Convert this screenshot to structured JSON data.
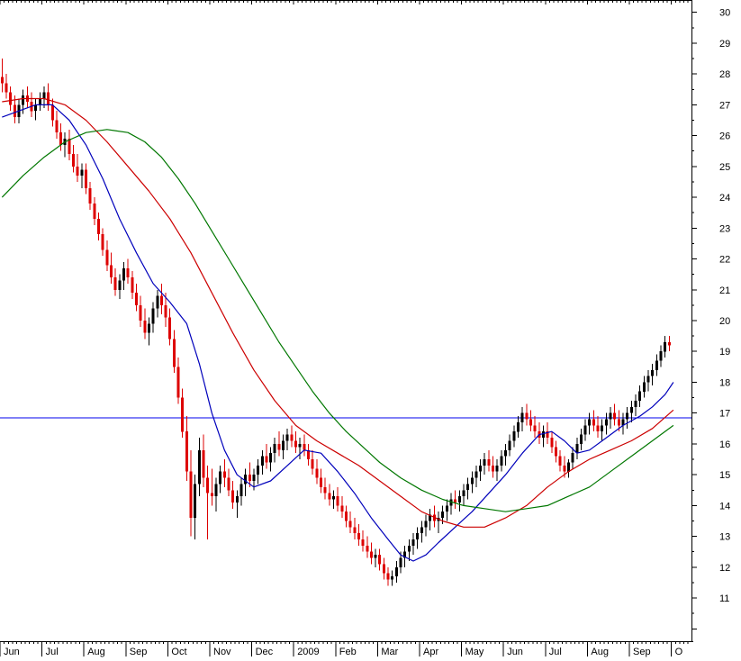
{
  "chart_data": {
    "type": "candlestick",
    "title": "",
    "xlabel": "",
    "ylabel": "",
    "grid": "off",
    "legend": "none",
    "x_tick_labels": [
      "Jun",
      "Jul",
      "Aug",
      "Sep",
      "Oct",
      "Nov",
      "Dec",
      "2009",
      "Feb",
      "Mar",
      "Apr",
      "May",
      "Jun",
      "Jul",
      "Aug",
      "Sep",
      "O"
    ],
    "candles_per_month": 10,
    "y_tick_labels": [
      30,
      29,
      28,
      27,
      26,
      25,
      24,
      23,
      22,
      21,
      20,
      19,
      18,
      17,
      16,
      15,
      14,
      13,
      12,
      11
    ],
    "ylim": [
      9.6,
      30.4
    ],
    "horizontal_line": {
      "value": 16.85,
      "color": "#0000ee"
    },
    "candle_colors": {
      "up": "#000000",
      "down": "#dd0000"
    },
    "candles": [
      [
        27.9,
        28.5,
        27.4,
        27.7
      ],
      [
        27.7,
        28.0,
        27.2,
        27.4
      ],
      [
        27.4,
        27.6,
        26.8,
        27.0
      ],
      [
        27.0,
        27.3,
        26.4,
        26.6
      ],
      [
        26.6,
        27.2,
        26.4,
        27.0
      ],
      [
        27.0,
        27.5,
        26.7,
        27.3
      ],
      [
        27.3,
        27.6,
        26.9,
        27.1
      ],
      [
        27.1,
        27.4,
        26.6,
        26.8
      ],
      [
        26.8,
        27.2,
        26.5,
        27.0
      ],
      [
        27.0,
        27.4,
        26.8,
        27.2
      ],
      [
        27.2,
        27.6,
        26.9,
        27.4
      ],
      [
        27.4,
        27.7,
        26.8,
        27.0
      ],
      [
        27.0,
        27.2,
        26.3,
        26.5
      ],
      [
        26.5,
        26.8,
        25.9,
        26.1
      ],
      [
        26.1,
        26.4,
        25.5,
        25.7
      ],
      [
        25.7,
        26.1,
        25.3,
        25.9
      ],
      [
        25.9,
        26.2,
        25.2,
        25.4
      ],
      [
        25.4,
        25.7,
        24.8,
        25.0
      ],
      [
        25.0,
        25.4,
        24.5,
        24.7
      ],
      [
        24.7,
        25.1,
        24.3,
        24.9
      ],
      [
        24.9,
        25.1,
        24.1,
        24.3
      ],
      [
        24.3,
        24.5,
        23.6,
        23.8
      ],
      [
        23.8,
        24.0,
        23.1,
        23.3
      ],
      [
        23.3,
        23.5,
        22.6,
        22.8
      ],
      [
        22.8,
        23.0,
        22.1,
        22.3
      ],
      [
        22.3,
        22.6,
        21.6,
        21.8
      ],
      [
        21.8,
        22.2,
        21.2,
        21.4
      ],
      [
        21.4,
        21.7,
        20.8,
        21.0
      ],
      [
        21.0,
        21.5,
        20.7,
        21.3
      ],
      [
        21.3,
        21.9,
        21.0,
        21.7
      ],
      [
        21.7,
        22.0,
        21.2,
        21.4
      ],
      [
        21.4,
        21.6,
        20.7,
        20.9
      ],
      [
        20.9,
        21.2,
        20.3,
        20.5
      ],
      [
        20.5,
        20.8,
        19.8,
        20.0
      ],
      [
        20.0,
        20.4,
        19.4,
        19.6
      ],
      [
        19.6,
        20.1,
        19.2,
        19.9
      ],
      [
        19.9,
        20.6,
        19.6,
        20.4
      ],
      [
        20.4,
        21.0,
        20.1,
        20.8
      ],
      [
        20.8,
        21.2,
        20.2,
        20.5
      ],
      [
        20.5,
        20.9,
        19.8,
        20.1
      ],
      [
        20.1,
        20.4,
        19.2,
        19.4
      ],
      [
        19.4,
        19.7,
        18.3,
        18.5
      ],
      [
        18.5,
        18.8,
        17.3,
        17.5
      ],
      [
        17.5,
        17.8,
        16.2,
        16.4
      ],
      [
        16.4,
        16.9,
        14.8,
        15.1
      ],
      [
        15.1,
        15.8,
        13.0,
        13.6
      ],
      [
        13.6,
        15.0,
        12.9,
        14.7
      ],
      [
        14.7,
        16.2,
        14.3,
        15.8
      ],
      [
        15.8,
        16.3,
        14.6,
        14.9
      ],
      [
        14.9,
        15.3,
        12.9,
        14.4
      ],
      [
        14.4,
        15.2,
        14.0,
        14.3
      ],
      [
        14.3,
        14.9,
        13.8,
        14.7
      ],
      [
        14.7,
        15.3,
        14.4,
        15.1
      ],
      [
        15.1,
        15.5,
        14.6,
        14.9
      ],
      [
        14.9,
        15.2,
        14.3,
        14.5
      ],
      [
        14.5,
        14.8,
        13.9,
        14.1
      ],
      [
        14.1,
        14.5,
        13.6,
        14.3
      ],
      [
        14.3,
        14.9,
        14.0,
        14.7
      ],
      [
        14.7,
        15.2,
        14.3,
        15.0
      ],
      [
        15.0,
        15.4,
        14.6,
        14.8
      ],
      [
        14.8,
        15.2,
        14.5,
        15.0
      ],
      [
        15.0,
        15.5,
        14.7,
        15.3
      ],
      [
        15.3,
        15.8,
        15.0,
        15.6
      ],
      [
        15.6,
        16.0,
        15.2,
        15.4
      ],
      [
        15.4,
        15.9,
        15.1,
        15.7
      ],
      [
        15.7,
        16.2,
        15.4,
        16.0
      ],
      [
        16.0,
        16.4,
        15.6,
        15.8
      ],
      [
        15.8,
        16.3,
        15.5,
        16.1
      ],
      [
        16.1,
        16.5,
        15.8,
        16.3
      ],
      [
        16.3,
        16.6,
        15.9,
        16.1
      ],
      [
        16.1,
        16.4,
        15.7,
        15.9
      ],
      [
        15.9,
        16.2,
        15.5,
        16.0
      ],
      [
        16.0,
        16.3,
        15.6,
        15.8
      ],
      [
        15.8,
        16.0,
        15.3,
        15.5
      ],
      [
        15.5,
        15.8,
        15.0,
        15.2
      ],
      [
        15.2,
        15.5,
        14.7,
        14.9
      ],
      [
        14.9,
        15.2,
        14.4,
        14.6
      ],
      [
        14.6,
        14.9,
        14.2,
        14.4
      ],
      [
        14.4,
        14.7,
        14.0,
        14.2
      ],
      [
        14.2,
        14.5,
        13.9,
        14.3
      ],
      [
        14.3,
        14.6,
        13.8,
        14.0
      ],
      [
        14.0,
        14.3,
        13.6,
        13.8
      ],
      [
        13.8,
        14.0,
        13.3,
        13.5
      ],
      [
        13.5,
        13.8,
        13.1,
        13.3
      ],
      [
        13.3,
        13.6,
        12.9,
        13.1
      ],
      [
        13.1,
        13.4,
        12.7,
        12.9
      ],
      [
        12.9,
        13.2,
        12.5,
        12.7
      ],
      [
        12.7,
        13.0,
        12.3,
        12.5
      ],
      [
        12.5,
        12.8,
        12.1,
        12.3
      ],
      [
        12.3,
        12.6,
        12.0,
        12.4
      ],
      [
        12.4,
        12.6,
        11.9,
        12.1
      ],
      [
        12.1,
        12.3,
        11.6,
        11.8
      ],
      [
        11.8,
        12.0,
        11.4,
        11.6
      ],
      [
        11.6,
        11.9,
        11.4,
        11.7
      ],
      [
        11.7,
        12.2,
        11.5,
        12.0
      ],
      [
        12.0,
        12.5,
        11.8,
        12.3
      ],
      [
        12.3,
        12.7,
        12.0,
        12.5
      ],
      [
        12.5,
        12.9,
        12.2,
        12.7
      ],
      [
        12.7,
        13.1,
        12.4,
        12.9
      ],
      [
        12.9,
        13.3,
        12.6,
        13.1
      ],
      [
        13.1,
        13.5,
        12.8,
        13.3
      ],
      [
        13.3,
        13.7,
        13.0,
        13.5
      ],
      [
        13.5,
        13.9,
        13.2,
        13.7
      ],
      [
        13.7,
        14.0,
        13.3,
        13.5
      ],
      [
        13.5,
        13.8,
        13.1,
        13.6
      ],
      [
        13.6,
        14.0,
        13.4,
        13.8
      ],
      [
        13.8,
        14.2,
        13.5,
        14.0
      ],
      [
        14.0,
        14.4,
        13.7,
        14.2
      ],
      [
        14.2,
        14.5,
        13.9,
        14.1
      ],
      [
        14.1,
        14.5,
        13.8,
        14.3
      ],
      [
        14.3,
        14.7,
        14.0,
        14.5
      ],
      [
        14.5,
        14.9,
        14.2,
        14.7
      ],
      [
        14.7,
        15.1,
        14.4,
        14.9
      ],
      [
        14.9,
        15.3,
        14.6,
        15.1
      ],
      [
        15.1,
        15.5,
        14.8,
        15.3
      ],
      [
        15.3,
        15.7,
        15.0,
        15.5
      ],
      [
        15.5,
        15.8,
        15.1,
        15.3
      ],
      [
        15.3,
        15.6,
        14.9,
        15.1
      ],
      [
        15.1,
        15.5,
        14.8,
        15.3
      ],
      [
        15.3,
        15.8,
        15.1,
        15.6
      ],
      [
        15.6,
        16.0,
        15.3,
        15.8
      ],
      [
        15.8,
        16.3,
        15.6,
        16.1
      ],
      [
        16.1,
        16.6,
        15.9,
        16.4
      ],
      [
        16.4,
        16.9,
        16.2,
        16.7
      ],
      [
        16.7,
        17.2,
        16.4,
        17.0
      ],
      [
        17.0,
        17.3,
        16.6,
        16.8
      ],
      [
        16.8,
        17.1,
        16.4,
        16.6
      ],
      [
        16.6,
        16.9,
        16.2,
        16.4
      ],
      [
        16.4,
        16.7,
        16.0,
        16.2
      ],
      [
        16.2,
        16.6,
        15.9,
        16.4
      ],
      [
        16.4,
        16.7,
        16.0,
        16.2
      ],
      [
        16.2,
        16.4,
        15.7,
        15.9
      ],
      [
        15.9,
        16.1,
        15.4,
        15.6
      ],
      [
        15.6,
        15.8,
        15.1,
        15.3
      ],
      [
        15.3,
        15.6,
        14.9,
        15.1
      ],
      [
        15.1,
        15.5,
        14.9,
        15.4
      ],
      [
        15.4,
        15.9,
        15.2,
        15.7
      ],
      [
        15.7,
        16.2,
        15.5,
        16.0
      ],
      [
        16.0,
        16.5,
        15.8,
        16.3
      ],
      [
        16.3,
        16.8,
        16.1,
        16.6
      ],
      [
        16.6,
        17.0,
        16.3,
        16.8
      ],
      [
        16.8,
        17.1,
        16.4,
        16.6
      ],
      [
        16.6,
        16.9,
        16.2,
        16.4
      ],
      [
        16.4,
        16.8,
        16.1,
        16.6
      ],
      [
        16.6,
        17.0,
        16.3,
        16.8
      ],
      [
        16.8,
        17.2,
        16.5,
        17.0
      ],
      [
        17.0,
        17.3,
        16.6,
        16.8
      ],
      [
        16.8,
        17.1,
        16.4,
        16.6
      ],
      [
        16.6,
        17.0,
        16.3,
        16.8
      ],
      [
        16.8,
        17.2,
        16.5,
        17.0
      ],
      [
        17.0,
        17.4,
        16.7,
        17.2
      ],
      [
        17.2,
        17.6,
        16.9,
        17.4
      ],
      [
        17.4,
        17.9,
        17.2,
        17.7
      ],
      [
        17.7,
        18.2,
        17.5,
        18.0
      ],
      [
        18.0,
        18.4,
        17.7,
        18.2
      ],
      [
        18.2,
        18.6,
        17.9,
        18.4
      ],
      [
        18.4,
        18.9,
        18.2,
        18.7
      ],
      [
        18.7,
        19.2,
        18.5,
        19.0
      ],
      [
        19.0,
        19.5,
        18.8,
        19.3
      ],
      [
        19.3,
        19.5,
        19.0,
        19.2
      ]
    ],
    "moving_averages": [
      {
        "name": "short-term-ma",
        "color": "#0000bb",
        "points": [
          [
            0,
            26.6
          ],
          [
            4,
            26.8
          ],
          [
            8,
            27.0
          ],
          [
            12,
            27.0
          ],
          [
            16,
            26.5
          ],
          [
            20,
            25.7
          ],
          [
            24,
            24.6
          ],
          [
            28,
            23.3
          ],
          [
            32,
            22.2
          ],
          [
            36,
            21.2
          ],
          [
            40,
            20.6
          ],
          [
            44,
            19.9
          ],
          [
            47,
            18.6
          ],
          [
            50,
            17.0
          ],
          [
            53,
            15.8
          ],
          [
            56,
            15.0
          ],
          [
            60,
            14.6
          ],
          [
            64,
            14.8
          ],
          [
            68,
            15.3
          ],
          [
            72,
            15.8
          ],
          [
            76,
            15.7
          ],
          [
            80,
            15.1
          ],
          [
            84,
            14.4
          ],
          [
            88,
            13.6
          ],
          [
            92,
            12.9
          ],
          [
            95,
            12.4
          ],
          [
            98,
            12.2
          ],
          [
            101,
            12.4
          ],
          [
            104,
            12.8
          ],
          [
            108,
            13.3
          ],
          [
            112,
            13.8
          ],
          [
            116,
            14.4
          ],
          [
            120,
            15.0
          ],
          [
            124,
            15.7
          ],
          [
            128,
            16.3
          ],
          [
            131,
            16.4
          ],
          [
            134,
            16.1
          ],
          [
            137,
            15.7
          ],
          [
            140,
            15.8
          ],
          [
            144,
            16.2
          ],
          [
            148,
            16.6
          ],
          [
            152,
            16.9
          ],
          [
            155,
            17.2
          ],
          [
            158,
            17.6
          ],
          [
            160,
            18.0
          ]
        ]
      },
      {
        "name": "medium-term-ma",
        "color": "#cc0000",
        "points": [
          [
            0,
            27.1
          ],
          [
            5,
            27.2
          ],
          [
            10,
            27.2
          ],
          [
            15,
            27.0
          ],
          [
            20,
            26.5
          ],
          [
            25,
            25.8
          ],
          [
            30,
            25.0
          ],
          [
            35,
            24.2
          ],
          [
            40,
            23.3
          ],
          [
            45,
            22.2
          ],
          [
            50,
            20.9
          ],
          [
            55,
            19.6
          ],
          [
            60,
            18.4
          ],
          [
            65,
            17.4
          ],
          [
            70,
            16.6
          ],
          [
            75,
            16.1
          ],
          [
            80,
            15.7
          ],
          [
            85,
            15.3
          ],
          [
            90,
            14.8
          ],
          [
            95,
            14.3
          ],
          [
            100,
            13.8
          ],
          [
            105,
            13.5
          ],
          [
            110,
            13.3
          ],
          [
            115,
            13.3
          ],
          [
            120,
            13.6
          ],
          [
            125,
            14.0
          ],
          [
            130,
            14.6
          ],
          [
            135,
            15.1
          ],
          [
            140,
            15.5
          ],
          [
            145,
            15.8
          ],
          [
            150,
            16.1
          ],
          [
            155,
            16.5
          ],
          [
            160,
            17.1
          ]
        ]
      },
      {
        "name": "long-term-ma",
        "color": "#007700",
        "points": [
          [
            0,
            24.0
          ],
          [
            5,
            24.7
          ],
          [
            10,
            25.3
          ],
          [
            15,
            25.8
          ],
          [
            20,
            26.1
          ],
          [
            25,
            26.2
          ],
          [
            30,
            26.1
          ],
          [
            34,
            25.8
          ],
          [
            38,
            25.3
          ],
          [
            42,
            24.6
          ],
          [
            46,
            23.8
          ],
          [
            50,
            22.9
          ],
          [
            54,
            22.0
          ],
          [
            58,
            21.1
          ],
          [
            62,
            20.2
          ],
          [
            66,
            19.3
          ],
          [
            70,
            18.5
          ],
          [
            74,
            17.7
          ],
          [
            78,
            17.0
          ],
          [
            82,
            16.4
          ],
          [
            86,
            15.9
          ],
          [
            90,
            15.4
          ],
          [
            95,
            14.9
          ],
          [
            100,
            14.5
          ],
          [
            105,
            14.2
          ],
          [
            110,
            14.0
          ],
          [
            115,
            13.9
          ],
          [
            120,
            13.8
          ],
          [
            125,
            13.9
          ],
          [
            130,
            14.0
          ],
          [
            135,
            14.3
          ],
          [
            140,
            14.6
          ],
          [
            145,
            15.1
          ],
          [
            150,
            15.6
          ],
          [
            155,
            16.1
          ],
          [
            160,
            16.6
          ]
        ]
      }
    ]
  }
}
